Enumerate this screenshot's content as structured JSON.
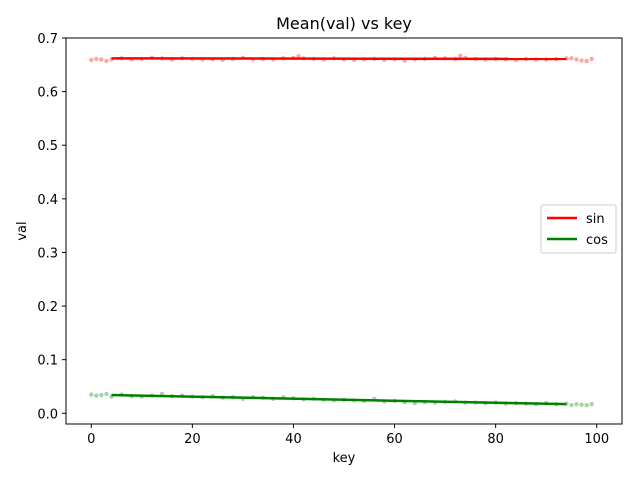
{
  "chart_data": {
    "type": "line",
    "title": "Mean(val) vs key",
    "xlabel": "key",
    "ylabel": "val",
    "xlim": [
      -5,
      105
    ],
    "ylim": [
      -0.02,
      0.7
    ],
    "xticks": [
      0,
      20,
      40,
      60,
      80,
      100
    ],
    "yticks": [
      0.0,
      0.1,
      0.2,
      0.3,
      0.4,
      0.5,
      0.6,
      0.7
    ],
    "xtick_labels": [
      "0",
      "20",
      "40",
      "60",
      "80",
      "100"
    ],
    "ytick_labels": [
      "0.0",
      "0.1",
      "0.2",
      "0.3",
      "0.4",
      "0.5",
      "0.6",
      "0.7"
    ],
    "grid": false,
    "legend_position": "center-right",
    "series": [
      {
        "name": "sin",
        "color": "#ff0000",
        "line_x": [
          4,
          94
        ],
        "line_y": [
          0.662,
          0.661
        ],
        "points_x": [
          0,
          1,
          2,
          3,
          4,
          6,
          8,
          10,
          12,
          14,
          16,
          18,
          20,
          22,
          24,
          26,
          28,
          30,
          32,
          34,
          36,
          38,
          40,
          41,
          42,
          44,
          46,
          48,
          50,
          52,
          54,
          56,
          58,
          60,
          62,
          64,
          66,
          68,
          70,
          72,
          73,
          74,
          76,
          78,
          80,
          82,
          84,
          86,
          88,
          90,
          92,
          94,
          95,
          96,
          97,
          98,
          99
        ],
        "points_y": [
          0.659,
          0.661,
          0.66,
          0.657,
          0.66,
          0.662,
          0.66,
          0.661,
          0.663,
          0.662,
          0.66,
          0.662,
          0.661,
          0.66,
          0.66,
          0.659,
          0.661,
          0.663,
          0.66,
          0.661,
          0.66,
          0.662,
          0.663,
          0.666,
          0.662,
          0.661,
          0.66,
          0.662,
          0.66,
          0.659,
          0.66,
          0.661,
          0.659,
          0.66,
          0.658,
          0.66,
          0.661,
          0.663,
          0.662,
          0.661,
          0.667,
          0.663,
          0.661,
          0.66,
          0.661,
          0.66,
          0.659,
          0.661,
          0.66,
          0.66,
          0.661,
          0.662,
          0.662,
          0.66,
          0.658,
          0.657,
          0.661
        ]
      },
      {
        "name": "cos",
        "color": "#008000",
        "line_x": [
          4,
          94
        ],
        "line_y": [
          0.034,
          0.017
        ],
        "points_x": [
          0,
          1,
          2,
          3,
          4,
          6,
          8,
          10,
          12,
          14,
          16,
          18,
          20,
          22,
          24,
          26,
          28,
          30,
          32,
          34,
          36,
          38,
          40,
          42,
          44,
          46,
          48,
          50,
          52,
          54,
          56,
          58,
          60,
          62,
          64,
          66,
          68,
          70,
          72,
          74,
          76,
          78,
          80,
          82,
          84,
          86,
          88,
          90,
          92,
          94,
          95,
          96,
          97,
          98,
          99
        ],
        "points_y": [
          0.035,
          0.033,
          0.034,
          0.036,
          0.031,
          0.035,
          0.032,
          0.031,
          0.033,
          0.036,
          0.032,
          0.033,
          0.031,
          0.03,
          0.032,
          0.029,
          0.03,
          0.027,
          0.03,
          0.029,
          0.027,
          0.03,
          0.028,
          0.026,
          0.027,
          0.025,
          0.024,
          0.025,
          0.024,
          0.023,
          0.027,
          0.022,
          0.023,
          0.021,
          0.019,
          0.021,
          0.02,
          0.021,
          0.022,
          0.02,
          0.02,
          0.019,
          0.02,
          0.018,
          0.019,
          0.018,
          0.017,
          0.019,
          0.017,
          0.018,
          0.015,
          0.017,
          0.016,
          0.015,
          0.017
        ]
      }
    ]
  }
}
